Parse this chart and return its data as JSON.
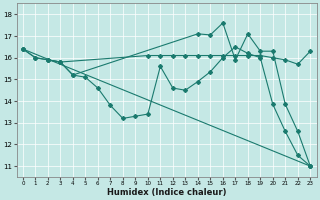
{
  "xlabel": "Humidex (Indice chaleur)",
  "bg_color": "#c5e8e5",
  "line_color": "#1a7a6e",
  "grid_color": "#ffffff",
  "xlim": [
    -0.5,
    23.5
  ],
  "ylim": [
    10.5,
    18.5
  ],
  "yticks": [
    11,
    12,
    13,
    14,
    15,
    16,
    17,
    18
  ],
  "xticks": [
    0,
    1,
    2,
    3,
    4,
    5,
    6,
    7,
    8,
    9,
    10,
    11,
    12,
    13,
    14,
    15,
    16,
    17,
    18,
    19,
    20,
    21,
    22,
    23
  ],
  "lines": [
    {
      "x": [
        0,
        23
      ],
      "y": [
        16.4,
        11.0
      ]
    },
    {
      "x": [
        0,
        1,
        2,
        3,
        10,
        11,
        12,
        13,
        14,
        15,
        16,
        17,
        18,
        19,
        20,
        21,
        22,
        23
      ],
      "y": [
        16.4,
        16.0,
        15.9,
        15.8,
        16.1,
        16.1,
        16.1,
        16.1,
        16.1,
        16.1,
        16.1,
        16.1,
        16.1,
        16.1,
        16.0,
        15.9,
        15.7,
        16.3
      ]
    },
    {
      "x": [
        0,
        1,
        2,
        3,
        4,
        5,
        6,
        7,
        8,
        9,
        10,
        11,
        12,
        13,
        14,
        15,
        16,
        17,
        18,
        19,
        20,
        21,
        22,
        23
      ],
      "y": [
        16.4,
        16.0,
        15.9,
        15.8,
        15.2,
        15.1,
        14.6,
        13.8,
        13.2,
        13.3,
        13.4,
        15.6,
        14.6,
        14.5,
        14.9,
        15.35,
        16.0,
        16.5,
        16.2,
        16.0,
        13.85,
        12.6,
        11.5,
        11.0
      ]
    },
    {
      "x": [
        2,
        3,
        4,
        14,
        15,
        16,
        17,
        18,
        19,
        20,
        21,
        22,
        23
      ],
      "y": [
        15.9,
        15.8,
        15.2,
        17.1,
        17.05,
        17.6,
        15.9,
        17.1,
        16.3,
        16.3,
        13.85,
        12.6,
        11.0
      ]
    }
  ]
}
